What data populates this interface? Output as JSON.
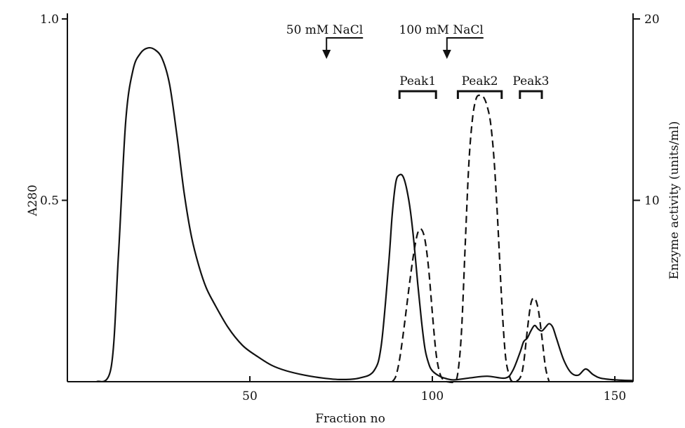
{
  "chart_data": {
    "type": "line",
    "title": "",
    "xlabel": "Fraction no",
    "ylabel": "A280",
    "y2label": "Enzyme activity (units/ml)",
    "xlim": [
      0,
      155
    ],
    "ylim": [
      0,
      1.0
    ],
    "y2lim": [
      0,
      20
    ],
    "x_ticks": [
      50,
      100,
      150
    ],
    "y_ticks": [
      {
        "value": 0.5,
        "label": "0.5"
      },
      {
        "value": 1.0,
        "label": "1.0"
      }
    ],
    "y2_ticks": [
      {
        "value": 10,
        "label": "10"
      },
      {
        "value": 20,
        "label": "20"
      }
    ],
    "grid": false,
    "series": [
      {
        "style": "solid",
        "axis": "left",
        "x": [
          8,
          12,
          14,
          16,
          18,
          20,
          22,
          24,
          26,
          28,
          30,
          32,
          34,
          36,
          38,
          40,
          44,
          48,
          52,
          56,
          60,
          65,
          70,
          75,
          80,
          84,
          86,
          88,
          89,
          90,
          91,
          92,
          93,
          94,
          95,
          96,
          97,
          98,
          99,
          100,
          102,
          104,
          106,
          110,
          115,
          120,
          122,
          124,
          125,
          126,
          127,
          128,
          129,
          130,
          131,
          132,
          133,
          134,
          136,
          138,
          140,
          142,
          144,
          146,
          150,
          155
        ],
        "y": [
          0.0,
          0.04,
          0.35,
          0.72,
          0.86,
          0.905,
          0.92,
          0.915,
          0.89,
          0.82,
          0.68,
          0.52,
          0.4,
          0.32,
          0.26,
          0.22,
          0.15,
          0.1,
          0.07,
          0.045,
          0.03,
          0.018,
          0.01,
          0.006,
          0.01,
          0.03,
          0.1,
          0.32,
          0.46,
          0.55,
          0.57,
          0.565,
          0.53,
          0.47,
          0.38,
          0.27,
          0.17,
          0.09,
          0.05,
          0.03,
          0.015,
          0.008,
          0.005,
          0.01,
          0.015,
          0.01,
          0.03,
          0.08,
          0.11,
          0.12,
          0.14,
          0.155,
          0.145,
          0.14,
          0.15,
          0.16,
          0.15,
          0.12,
          0.06,
          0.025,
          0.018,
          0.035,
          0.02,
          0.01,
          0.005,
          0.003
        ]
      },
      {
        "style": "dashed",
        "axis": "right",
        "x": [
          89,
          90,
          91,
          92,
          93,
          94,
          95,
          96,
          97,
          98,
          99,
          100,
          101,
          102,
          103,
          104,
          106,
          107,
          108,
          109,
          110,
          111,
          112,
          113,
          114,
          115,
          116,
          117,
          118,
          119,
          120,
          121,
          122,
          124,
          125,
          126,
          127,
          128,
          129,
          130,
          131,
          132
        ],
        "y": [
          0.0,
          0.3,
          1.2,
          2.6,
          4.2,
          5.8,
          7.2,
          8.2,
          8.4,
          7.8,
          6.2,
          3.8,
          1.6,
          0.5,
          0.1,
          0.0,
          0.0,
          0.5,
          2.8,
          7.5,
          12.0,
          14.5,
          15.6,
          15.8,
          15.7,
          15.2,
          14.2,
          12.0,
          8.5,
          4.5,
          1.5,
          0.4,
          0.0,
          0.2,
          1.0,
          2.8,
          4.3,
          4.6,
          4.0,
          2.5,
          0.8,
          0.0
        ]
      }
    ],
    "annotations": [
      {
        "text": "50 mM NaCl",
        "x": 71
      },
      {
        "text": "100 mM NaCl",
        "x": 104
      }
    ],
    "peak_ranges": [
      {
        "label": "Peak1",
        "x0": 91,
        "x1": 101
      },
      {
        "label": "Peak2",
        "x0": 107,
        "x1": 119
      },
      {
        "label": "Peak3",
        "x0": 124,
        "x1": 130
      }
    ]
  }
}
